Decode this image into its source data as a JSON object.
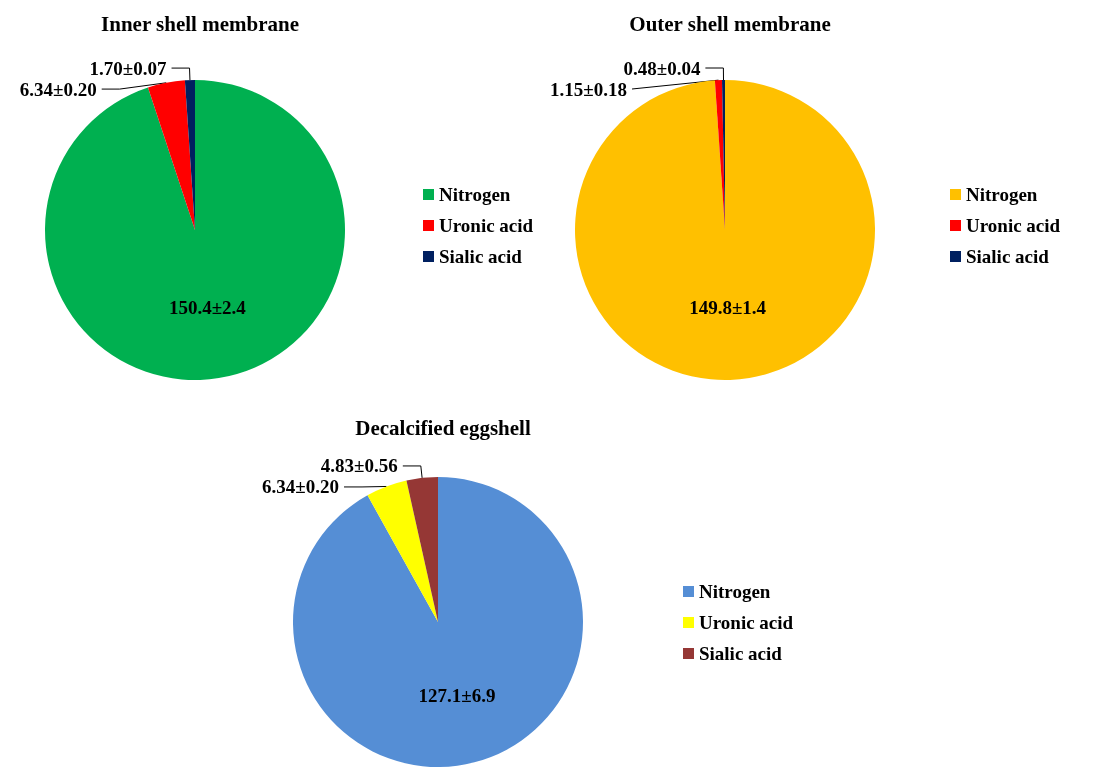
{
  "chart_data": [
    {
      "type": "pie",
      "title": "Inner shell membrane",
      "categories": [
        "Nitrogen",
        "Uronic acid",
        "Sialic acid"
      ],
      "values": [
        150.4,
        6.34,
        1.7
      ],
      "colors": [
        "#00b050",
        "#ff0000",
        "#002060"
      ],
      "value_labels": [
        "150.4±2.4",
        "6.34±0.20",
        "1.70±0.07"
      ],
      "legend": "right"
    },
    {
      "type": "pie",
      "title": "Outer shell membrane",
      "categories": [
        "Nitrogen",
        "Uronic acid",
        "Sialic acid"
      ],
      "values": [
        149.8,
        1.15,
        0.48
      ],
      "colors": [
        "#ffc000",
        "#ff0000",
        "#002060"
      ],
      "value_labels": [
        "149.8±1.4",
        "1.15±0.18",
        "0.48±0.04"
      ],
      "legend": "right"
    },
    {
      "type": "pie",
      "title": "Decalcified eggshell",
      "categories": [
        "Nitrogen",
        "Uronic acid",
        "Sialic acid"
      ],
      "values": [
        127.1,
        6.34,
        4.83
      ],
      "colors": [
        "#558ed5",
        "#ffff00",
        "#953735"
      ],
      "value_labels": [
        "127.1±6.9",
        "6.34±0.20",
        "4.83±0.56"
      ],
      "legend": "right"
    }
  ]
}
